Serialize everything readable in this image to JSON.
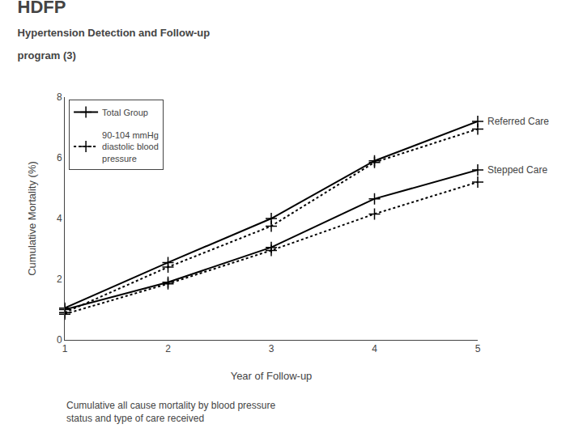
{
  "chart_data": {
    "type": "line",
    "title": "HDFP\nHypertension Detection and Follow-up\nprogram (3)",
    "subtitle": "Cumulative all cause mortality by blood pressure\nstatus and type of care received",
    "xlabel": "Year of Follow-up",
    "ylabel": "Cumulative Mortality (%)",
    "x": [
      1,
      2,
      3,
      4,
      5
    ],
    "series": [
      {
        "name": "Total Group",
        "color": "#000000",
        "line_style": "solid",
        "marker": "+",
        "values": [
          1.05,
          2.55,
          4.0,
          5.9,
          7.2
        ]
      },
      {
        "name": "90-104 mmHg\ndiastolic blood\npressure",
        "color": "#000000",
        "line_style": "dotted",
        "marker": "+",
        "values": [
          0.9,
          2.4,
          3.75,
          5.85,
          6.95
        ]
      },
      {
        "name": "Total Group",
        "color": "#000000",
        "line_style": "solid",
        "marker": "+",
        "values": [
          1.0,
          1.9,
          3.05,
          4.65,
          5.6
        ]
      },
      {
        "name": "90-104 mmHg\ndiastolic blood\npressure",
        "color": "#000000",
        "line_style": "dotted",
        "marker": "+",
        "values": [
          0.85,
          1.85,
          2.95,
          4.15,
          5.2
        ]
      }
    ],
    "xlim": [
      1,
      5
    ],
    "ylim": [
      0,
      8
    ],
    "xticks": [
      1,
      2,
      3,
      4,
      5
    ],
    "yticks": [
      0,
      2,
      4,
      6,
      8
    ],
    "grid": false,
    "legend": "upper left",
    "annotations": [
      {
        "text": "Referred Care",
        "x": 5,
        "y": 7.2
      },
      {
        "text": "Stepped Care",
        "x": 5,
        "y": 5.6
      }
    ]
  }
}
